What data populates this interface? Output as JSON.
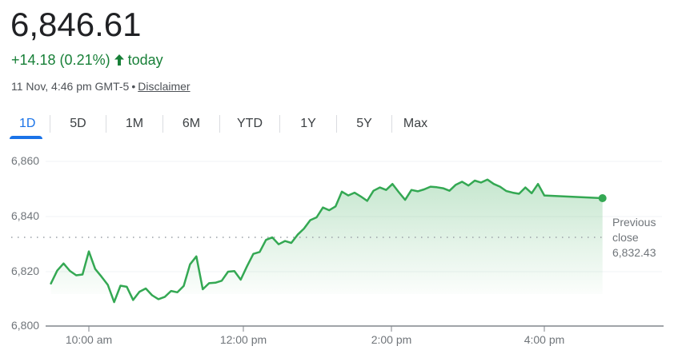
{
  "quote": {
    "price": "6,846.61",
    "change": "+14.18 (0.21%)",
    "direction_icon": "arrow-up-icon",
    "period": "today",
    "timestamp": "11 Nov, 4:46 pm GMT-5",
    "separator": "•",
    "disclaimer_label": "Disclaimer"
  },
  "tabs": [
    {
      "label": "1D",
      "active": true
    },
    {
      "label": "5D",
      "active": false
    },
    {
      "label": "1M",
      "active": false
    },
    {
      "label": "6M",
      "active": false
    },
    {
      "label": "YTD",
      "active": false
    },
    {
      "label": "1Y",
      "active": false
    },
    {
      "label": "5Y",
      "active": false
    },
    {
      "label": "Max",
      "active": false
    }
  ],
  "colors": {
    "line": "#34a853",
    "positive_text": "#188038",
    "active_tab": "#1a73e8",
    "axis_text": "#70757a"
  },
  "previous_close": {
    "label_line1": "Previous",
    "label_line2": "close",
    "value": "6,832.43"
  },
  "chart_data": {
    "type": "line",
    "title": "",
    "xlabel": "",
    "ylabel": "",
    "ylim": [
      6800,
      6860
    ],
    "yticks": [
      "6,800",
      "6,820",
      "6,840",
      "6,860"
    ],
    "xticks": [
      "10:00 am",
      "12:00 pm",
      "2:00 pm",
      "4:00 pm"
    ],
    "grid": true,
    "reference_line": {
      "label": "Previous close",
      "value": 6832.43,
      "style": "dotted"
    },
    "series": [
      {
        "name": "Price",
        "x": [
          "9:30",
          "9:35",
          "9:40",
          "9:45",
          "9:50",
          "9:55",
          "10:00",
          "10:05",
          "10:10",
          "10:15",
          "10:20",
          "10:25",
          "10:30",
          "10:35",
          "10:40",
          "10:45",
          "10:50",
          "10:55",
          "11:00",
          "11:05",
          "11:10",
          "11:15",
          "11:20",
          "11:25",
          "11:30",
          "11:35",
          "11:40",
          "11:45",
          "11:50",
          "11:55",
          "12:00",
          "12:05",
          "12:10",
          "12:15",
          "12:20",
          "12:25",
          "12:30",
          "12:35",
          "12:40",
          "12:45",
          "12:50",
          "12:55",
          "13:00",
          "13:05",
          "13:10",
          "13:15",
          "13:20",
          "13:25",
          "13:30",
          "13:35",
          "13:40",
          "13:45",
          "13:50",
          "13:55",
          "14:00",
          "14:05",
          "14:10",
          "14:15",
          "14:20",
          "14:25",
          "14:30",
          "14:35",
          "14:40",
          "14:45",
          "14:50",
          "14:55",
          "15:00",
          "15:05",
          "15:10",
          "15:15",
          "15:20",
          "15:25",
          "15:30",
          "15:35",
          "15:40",
          "15:45",
          "15:50",
          "15:55",
          "16:00",
          "16:46"
        ],
        "values": [
          6815.5,
          6820.2,
          6822.8,
          6820.1,
          6818.5,
          6818.8,
          6827.2,
          6820.8,
          6818.0,
          6815.0,
          6808.7,
          6814.7,
          6814.3,
          6809.5,
          6812.5,
          6813.7,
          6811.2,
          6809.8,
          6810.6,
          6812.8,
          6812.3,
          6814.6,
          6822.5,
          6825.4,
          6813.4,
          6815.6,
          6815.8,
          6816.5,
          6819.8,
          6820.0,
          6816.9,
          6821.8,
          6826.3,
          6827.0,
          6831.4,
          6832.3,
          6829.8,
          6831.0,
          6830.3,
          6833.3,
          6835.5,
          6838.6,
          6839.6,
          6843.2,
          6842.2,
          6843.6,
          6849.0,
          6847.6,
          6848.6,
          6847.2,
          6845.6,
          6849.3,
          6850.5,
          6849.6,
          6851.8,
          6848.8,
          6846.0,
          6849.6,
          6849.1,
          6849.8,
          6850.8,
          6850.6,
          6850.2,
          6849.3,
          6851.5,
          6852.6,
          6851.2,
          6853.0,
          6852.3,
          6853.4,
          6851.8,
          6850.8,
          6849.2,
          6848.6,
          6848.2,
          6850.5,
          6848.4,
          6851.8,
          6847.6,
          6846.61
        ]
      }
    ],
    "last_point": {
      "value": 6846.61,
      "marker": true
    }
  }
}
